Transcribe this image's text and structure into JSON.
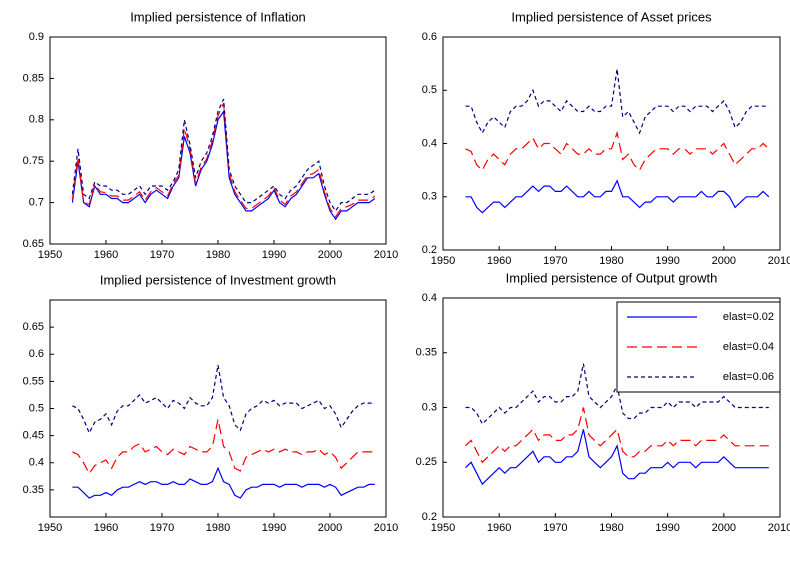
{
  "chart_data": [
    {
      "type": "line",
      "title": "Implied persistence of Inflation",
      "x": [
        1954,
        1955,
        1956,
        1957,
        1958,
        1959,
        1960,
        1961,
        1962,
        1963,
        1964,
        1965,
        1966,
        1967,
        1968,
        1969,
        1970,
        1971,
        1972,
        1973,
        1974,
        1975,
        1976,
        1977,
        1978,
        1979,
        1980,
        1981,
        1982,
        1983,
        1984,
        1985,
        1986,
        1987,
        1988,
        1989,
        1990,
        1991,
        1992,
        1993,
        1994,
        1995,
        1996,
        1997,
        1998,
        1999,
        2000,
        2001,
        2002,
        2003,
        2004,
        2005,
        2006,
        2007,
        2008
      ],
      "series": [
        {
          "color": "#0000ff",
          "values": [
            0.7,
            0.75,
            0.7,
            0.695,
            0.72,
            0.71,
            0.71,
            0.705,
            0.705,
            0.7,
            0.7,
            0.705,
            0.71,
            0.7,
            0.71,
            0.715,
            0.71,
            0.705,
            0.72,
            0.73,
            0.78,
            0.76,
            0.72,
            0.74,
            0.75,
            0.77,
            0.8,
            0.81,
            0.73,
            0.71,
            0.7,
            0.69,
            0.69,
            0.695,
            0.7,
            0.705,
            0.715,
            0.7,
            0.695,
            0.705,
            0.71,
            0.72,
            0.73,
            0.73,
            0.735,
            0.71,
            0.69,
            0.68,
            0.69,
            0.69,
            0.695,
            0.7,
            0.7,
            0.7,
            0.705
          ]
        },
        {
          "color": "#ff0000",
          "values": [
            0.703,
            0.755,
            0.7,
            0.698,
            0.722,
            0.713,
            0.712,
            0.708,
            0.708,
            0.703,
            0.703,
            0.708,
            0.713,
            0.703,
            0.713,
            0.718,
            0.713,
            0.708,
            0.723,
            0.733,
            0.79,
            0.765,
            0.723,
            0.743,
            0.753,
            0.775,
            0.805,
            0.82,
            0.735,
            0.713,
            0.703,
            0.693,
            0.693,
            0.698,
            0.703,
            0.708,
            0.718,
            0.703,
            0.698,
            0.708,
            0.713,
            0.723,
            0.733,
            0.735,
            0.74,
            0.713,
            0.693,
            0.683,
            0.693,
            0.695,
            0.698,
            0.703,
            0.703,
            0.703,
            0.708
          ]
        },
        {
          "color": "#000080",
          "values": [
            0.71,
            0.765,
            0.71,
            0.705,
            0.725,
            0.72,
            0.72,
            0.715,
            0.715,
            0.71,
            0.71,
            0.715,
            0.72,
            0.71,
            0.72,
            0.72,
            0.72,
            0.715,
            0.725,
            0.74,
            0.8,
            0.77,
            0.73,
            0.75,
            0.76,
            0.78,
            0.81,
            0.825,
            0.74,
            0.72,
            0.71,
            0.7,
            0.7,
            0.705,
            0.71,
            0.715,
            0.72,
            0.71,
            0.705,
            0.715,
            0.72,
            0.73,
            0.74,
            0.745,
            0.75,
            0.72,
            0.7,
            0.69,
            0.7,
            0.7,
            0.705,
            0.71,
            0.71,
            0.71,
            0.715
          ]
        }
      ],
      "xlim": [
        1950,
        2010
      ],
      "xticks": [
        1950,
        1960,
        1970,
        1980,
        1990,
        2000,
        2010
      ],
      "ylim": [
        0.65,
        0.9
      ],
      "yticks": [
        0.65,
        0.7,
        0.75,
        0.8,
        0.85,
        0.9
      ]
    },
    {
      "type": "line",
      "title": "Implied persistence of Asset prices",
      "x": [
        1954,
        1955,
        1956,
        1957,
        1958,
        1959,
        1960,
        1961,
        1962,
        1963,
        1964,
        1965,
        1966,
        1967,
        1968,
        1969,
        1970,
        1971,
        1972,
        1973,
        1974,
        1975,
        1976,
        1977,
        1978,
        1979,
        1980,
        1981,
        1982,
        1983,
        1984,
        1985,
        1986,
        1987,
        1988,
        1989,
        1990,
        1991,
        1992,
        1993,
        1994,
        1995,
        1996,
        1997,
        1998,
        1999,
        2000,
        2001,
        2002,
        2003,
        2004,
        2005,
        2006,
        2007,
        2008
      ],
      "series": [
        {
          "color": "#0000ff",
          "values": [
            0.3,
            0.3,
            0.28,
            0.27,
            0.28,
            0.29,
            0.29,
            0.28,
            0.29,
            0.3,
            0.3,
            0.31,
            0.32,
            0.31,
            0.32,
            0.32,
            0.31,
            0.31,
            0.32,
            0.31,
            0.3,
            0.3,
            0.31,
            0.3,
            0.3,
            0.31,
            0.31,
            0.33,
            0.3,
            0.3,
            0.29,
            0.28,
            0.29,
            0.29,
            0.3,
            0.3,
            0.3,
            0.29,
            0.3,
            0.3,
            0.3,
            0.3,
            0.31,
            0.3,
            0.3,
            0.31,
            0.31,
            0.3,
            0.28,
            0.29,
            0.3,
            0.3,
            0.3,
            0.31,
            0.3
          ]
        },
        {
          "color": "#ff0000",
          "values": [
            0.39,
            0.385,
            0.36,
            0.35,
            0.37,
            0.38,
            0.37,
            0.36,
            0.38,
            0.39,
            0.39,
            0.4,
            0.41,
            0.39,
            0.4,
            0.4,
            0.39,
            0.38,
            0.4,
            0.39,
            0.38,
            0.38,
            0.39,
            0.38,
            0.38,
            0.39,
            0.39,
            0.42,
            0.37,
            0.38,
            0.36,
            0.35,
            0.37,
            0.38,
            0.39,
            0.39,
            0.39,
            0.38,
            0.39,
            0.39,
            0.38,
            0.39,
            0.39,
            0.39,
            0.38,
            0.39,
            0.4,
            0.38,
            0.36,
            0.37,
            0.38,
            0.39,
            0.39,
            0.4,
            0.39
          ]
        },
        {
          "color": "#000080",
          "values": [
            0.47,
            0.47,
            0.44,
            0.42,
            0.44,
            0.45,
            0.44,
            0.43,
            0.46,
            0.47,
            0.47,
            0.48,
            0.5,
            0.47,
            0.48,
            0.48,
            0.47,
            0.46,
            0.48,
            0.47,
            0.46,
            0.46,
            0.47,
            0.46,
            0.46,
            0.47,
            0.47,
            0.54,
            0.45,
            0.46,
            0.44,
            0.42,
            0.45,
            0.46,
            0.47,
            0.47,
            0.47,
            0.46,
            0.47,
            0.47,
            0.46,
            0.47,
            0.47,
            0.47,
            0.46,
            0.47,
            0.48,
            0.46,
            0.43,
            0.44,
            0.46,
            0.47,
            0.47,
            0.47,
            0.47
          ]
        }
      ],
      "xlim": [
        1950,
        2010
      ],
      "xticks": [
        1950,
        1960,
        1970,
        1980,
        1990,
        2000,
        2010
      ],
      "ylim": [
        0.2,
        0.6
      ],
      "yticks": [
        0.2,
        0.3,
        0.4,
        0.5,
        0.6
      ]
    },
    {
      "type": "line",
      "title": "Implied persistence of Investment growth",
      "x": [
        1954,
        1955,
        1956,
        1957,
        1958,
        1959,
        1960,
        1961,
        1962,
        1963,
        1964,
        1965,
        1966,
        1967,
        1968,
        1969,
        1970,
        1971,
        1972,
        1973,
        1974,
        1975,
        1976,
        1977,
        1978,
        1979,
        1980,
        1981,
        1982,
        1983,
        1984,
        1985,
        1986,
        1987,
        1988,
        1989,
        1990,
        1991,
        1992,
        1993,
        1994,
        1995,
        1996,
        1997,
        1998,
        1999,
        2000,
        2001,
        2002,
        2003,
        2004,
        2005,
        2006,
        2007,
        2008
      ],
      "series": [
        {
          "color": "#0000ff",
          "values": [
            0.355,
            0.355,
            0.345,
            0.335,
            0.34,
            0.34,
            0.345,
            0.34,
            0.35,
            0.355,
            0.355,
            0.36,
            0.365,
            0.36,
            0.365,
            0.365,
            0.36,
            0.36,
            0.365,
            0.36,
            0.36,
            0.37,
            0.365,
            0.36,
            0.36,
            0.365,
            0.39,
            0.365,
            0.36,
            0.34,
            0.335,
            0.35,
            0.355,
            0.355,
            0.36,
            0.36,
            0.36,
            0.355,
            0.36,
            0.36,
            0.36,
            0.355,
            0.36,
            0.36,
            0.36,
            0.355,
            0.36,
            0.355,
            0.34,
            0.345,
            0.35,
            0.355,
            0.355,
            0.36,
            0.36
          ]
        },
        {
          "color": "#ff0000",
          "values": [
            0.42,
            0.415,
            0.4,
            0.38,
            0.395,
            0.4,
            0.405,
            0.39,
            0.41,
            0.42,
            0.42,
            0.43,
            0.435,
            0.42,
            0.425,
            0.43,
            0.42,
            0.415,
            0.425,
            0.42,
            0.415,
            0.43,
            0.425,
            0.42,
            0.42,
            0.43,
            0.48,
            0.43,
            0.42,
            0.39,
            0.385,
            0.41,
            0.415,
            0.42,
            0.425,
            0.42,
            0.425,
            0.42,
            0.425,
            0.42,
            0.42,
            0.415,
            0.42,
            0.42,
            0.425,
            0.415,
            0.42,
            0.41,
            0.39,
            0.4,
            0.41,
            0.42,
            0.42,
            0.42,
            0.42
          ]
        },
        {
          "color": "#000080",
          "values": [
            0.505,
            0.5,
            0.48,
            0.455,
            0.475,
            0.48,
            0.49,
            0.47,
            0.495,
            0.505,
            0.505,
            0.515,
            0.525,
            0.51,
            0.515,
            0.52,
            0.51,
            0.5,
            0.515,
            0.51,
            0.5,
            0.52,
            0.51,
            0.505,
            0.505,
            0.52,
            0.58,
            0.52,
            0.505,
            0.47,
            0.46,
            0.49,
            0.5,
            0.505,
            0.515,
            0.51,
            0.515,
            0.505,
            0.51,
            0.51,
            0.51,
            0.5,
            0.505,
            0.51,
            0.515,
            0.5,
            0.505,
            0.49,
            0.465,
            0.48,
            0.495,
            0.505,
            0.51,
            0.51,
            0.51
          ]
        }
      ],
      "xlim": [
        1950,
        2010
      ],
      "xticks": [
        1950,
        1960,
        1970,
        1980,
        1990,
        2000,
        2010
      ],
      "ylim": [
        0.3,
        0.7
      ],
      "yticks": [
        0.35,
        0.4,
        0.45,
        0.5,
        0.55,
        0.6,
        0.65
      ]
    },
    {
      "type": "line",
      "title": "Implied persistence of Output growth",
      "x": [
        1954,
        1955,
        1956,
        1957,
        1958,
        1959,
        1960,
        1961,
        1962,
        1963,
        1964,
        1965,
        1966,
        1967,
        1968,
        1969,
        1970,
        1971,
        1972,
        1973,
        1974,
        1975,
        1976,
        1977,
        1978,
        1979,
        1980,
        1981,
        1982,
        1983,
        1984,
        1985,
        1986,
        1987,
        1988,
        1989,
        1990,
        1991,
        1992,
        1993,
        1994,
        1995,
        1996,
        1997,
        1998,
        1999,
        2000,
        2001,
        2002,
        2003,
        2004,
        2005,
        2006,
        2007,
        2008
      ],
      "series": [
        {
          "name": "elast=0.02",
          "color": "#0000ff",
          "values": [
            0.245,
            0.25,
            0.24,
            0.23,
            0.235,
            0.24,
            0.245,
            0.24,
            0.245,
            0.245,
            0.25,
            0.255,
            0.26,
            0.25,
            0.255,
            0.255,
            0.25,
            0.25,
            0.255,
            0.255,
            0.26,
            0.28,
            0.255,
            0.25,
            0.245,
            0.25,
            0.255,
            0.265,
            0.24,
            0.235,
            0.235,
            0.24,
            0.24,
            0.245,
            0.245,
            0.245,
            0.25,
            0.245,
            0.25,
            0.25,
            0.25,
            0.245,
            0.25,
            0.25,
            0.25,
            0.25,
            0.255,
            0.25,
            0.245,
            0.245,
            0.245,
            0.245,
            0.245,
            0.245,
            0.245
          ]
        },
        {
          "name": "elast=0.04",
          "color": "#ff0000",
          "values": [
            0.265,
            0.27,
            0.26,
            0.25,
            0.255,
            0.26,
            0.265,
            0.26,
            0.265,
            0.265,
            0.27,
            0.275,
            0.28,
            0.27,
            0.275,
            0.275,
            0.27,
            0.27,
            0.275,
            0.275,
            0.28,
            0.3,
            0.275,
            0.27,
            0.265,
            0.27,
            0.275,
            0.28,
            0.26,
            0.255,
            0.255,
            0.26,
            0.26,
            0.265,
            0.265,
            0.265,
            0.27,
            0.265,
            0.27,
            0.27,
            0.27,
            0.265,
            0.27,
            0.27,
            0.27,
            0.27,
            0.275,
            0.27,
            0.265,
            0.265,
            0.265,
            0.265,
            0.265,
            0.265,
            0.265
          ]
        },
        {
          "name": "elast=0.06",
          "color": "#000080",
          "values": [
            0.3,
            0.3,
            0.295,
            0.285,
            0.29,
            0.295,
            0.3,
            0.295,
            0.3,
            0.3,
            0.305,
            0.31,
            0.315,
            0.305,
            0.31,
            0.31,
            0.305,
            0.305,
            0.31,
            0.31,
            0.315,
            0.34,
            0.31,
            0.305,
            0.3,
            0.305,
            0.31,
            0.32,
            0.295,
            0.29,
            0.29,
            0.295,
            0.295,
            0.3,
            0.3,
            0.3,
            0.305,
            0.3,
            0.305,
            0.305,
            0.305,
            0.3,
            0.305,
            0.305,
            0.305,
            0.305,
            0.31,
            0.305,
            0.3,
            0.3,
            0.3,
            0.3,
            0.3,
            0.3,
            0.3
          ]
        }
      ],
      "xlim": [
        1950,
        2010
      ],
      "xticks": [
        1950,
        1960,
        1970,
        1980,
        1990,
        2000,
        2010
      ],
      "ylim": [
        0.2,
        0.4
      ],
      "yticks": [
        0.2,
        0.25,
        0.3,
        0.35,
        0.4
      ],
      "legend": "upper right"
    }
  ]
}
